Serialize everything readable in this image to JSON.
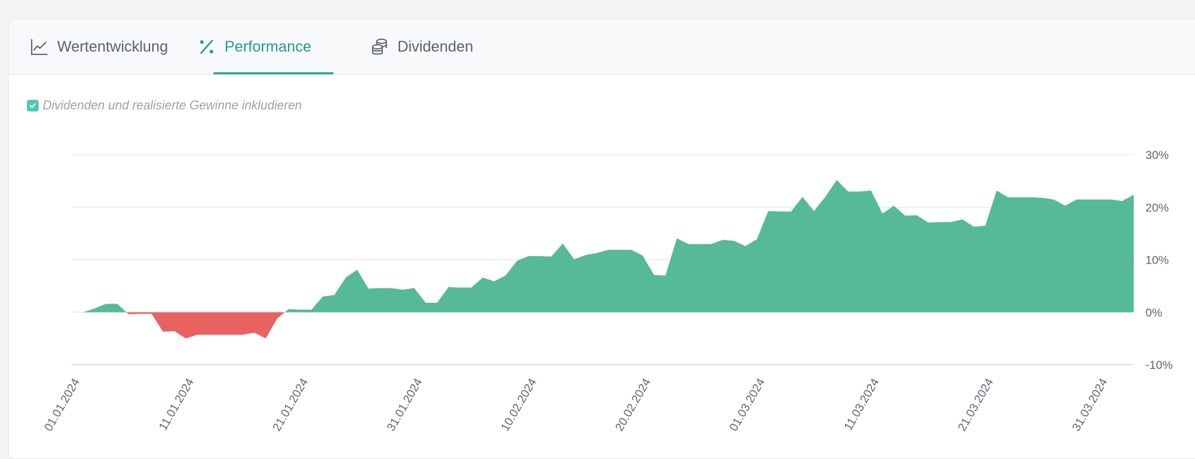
{
  "tabs": [
    {
      "label": "Wertentwicklung",
      "icon": "line-chart-icon",
      "active": false
    },
    {
      "label": "Performance",
      "icon": "percent-icon",
      "active": true
    },
    {
      "label": "Dividenden",
      "icon": "coins-stack-icon",
      "active": false
    }
  ],
  "option": {
    "label": "Dividenden und realisierte Gewinne inkludieren",
    "checked": true
  },
  "colors": {
    "positive": "#4cb68f",
    "negative": "#e85a5a",
    "accent": "#25a98f"
  },
  "chart_data": {
    "type": "area",
    "title": "",
    "xlabel": "",
    "ylabel": "",
    "ylim": [
      -10,
      30
    ],
    "yticks": [
      30,
      20,
      10,
      0,
      -10
    ],
    "ytick_labels": [
      "30%",
      "20%",
      "10%",
      "0%",
      "-10%"
    ],
    "xtick_labels": [
      "01.01.2024",
      "11.01.2024",
      "21.01.2024",
      "31.01.2024",
      "10.02.2024",
      "20.02.2024",
      "01.03.2024",
      "11.03.2024",
      "21.03.2024",
      "31.03.2024"
    ],
    "grid": true,
    "series": [
      {
        "x": [
          "01.01.2024",
          "02.01.2024",
          "03.01.2024",
          "04.01.2024",
          "05.01.2024",
          "06.01.2024",
          "07.01.2024",
          "08.01.2024",
          "09.01.2024",
          "10.01.2024",
          "11.01.2024",
          "12.01.2024",
          "13.01.2024",
          "14.01.2024",
          "15.01.2024",
          "16.01.2024",
          "17.01.2024",
          "18.01.2024",
          "19.01.2024",
          "20.01.2024",
          "21.01.2024",
          "22.01.2024",
          "23.01.2024",
          "24.01.2024",
          "25.01.2024",
          "26.01.2024",
          "27.01.2024",
          "28.01.2024",
          "29.01.2024",
          "30.01.2024",
          "31.01.2024",
          "01.02.2024",
          "02.02.2024",
          "03.02.2024",
          "04.02.2024",
          "05.02.2024",
          "06.02.2024",
          "07.02.2024",
          "08.02.2024",
          "09.02.2024",
          "10.02.2024",
          "11.02.2024",
          "12.02.2024",
          "13.02.2024",
          "14.02.2024",
          "15.02.2024",
          "16.02.2024",
          "17.02.2024",
          "18.02.2024",
          "19.02.2024",
          "20.02.2024",
          "21.02.2024",
          "22.02.2024",
          "23.02.2024",
          "24.02.2024",
          "25.02.2024",
          "26.02.2024",
          "27.02.2024",
          "28.02.2024",
          "29.02.2024",
          "01.03.2024",
          "02.03.2024",
          "03.03.2024",
          "04.03.2024",
          "05.03.2024",
          "06.03.2024",
          "07.03.2024",
          "08.03.2024",
          "09.03.2024",
          "10.03.2024",
          "11.03.2024",
          "12.03.2024",
          "13.03.2024",
          "14.03.2024",
          "15.03.2024",
          "16.03.2024",
          "17.03.2024",
          "18.03.2024",
          "19.03.2024",
          "20.03.2024",
          "21.03.2024",
          "22.03.2024",
          "23.03.2024",
          "24.03.2024",
          "25.03.2024",
          "26.03.2024",
          "27.03.2024",
          "28.03.2024",
          "29.03.2024",
          "30.03.2024",
          "31.03.2024",
          "01.04.2024",
          "02.04.2024",
          "03.04.2024"
        ],
        "values": [
          0,
          0,
          0.7,
          1.6,
          1.6,
          -0.4,
          -0.3,
          -0.3,
          -3.7,
          -3.6,
          -5,
          -4.3,
          -4.3,
          -4.3,
          -4.3,
          -4.3,
          -3.9,
          -5,
          -1.2,
          0.6,
          0.5,
          0.5,
          3,
          3.3,
          6.6,
          8.1,
          4.5,
          4.6,
          4.6,
          4.3,
          4.6,
          1.8,
          1.8,
          4.8,
          4.7,
          4.7,
          6.6,
          5.9,
          7,
          9.8,
          10.7,
          10.7,
          10.6,
          13.1,
          10.1,
          10.9,
          11.3,
          11.9,
          11.9,
          11.9,
          10.8,
          7.1,
          7,
          14.1,
          13,
          13,
          13,
          13.8,
          13.6,
          12.6,
          13.9,
          19.3,
          19.2,
          19.2,
          22,
          19.3,
          22,
          25.2,
          23,
          23,
          23.2,
          18.8,
          20.3,
          18.4,
          18.5,
          17.1,
          17.2,
          17.2,
          17.7,
          16.3,
          16.5,
          23.2,
          21.9,
          21.9,
          21.9,
          21.8,
          21.5,
          20.3,
          21.5,
          21.5,
          21.5,
          21.5,
          21.2,
          22.4
        ]
      }
    ]
  }
}
